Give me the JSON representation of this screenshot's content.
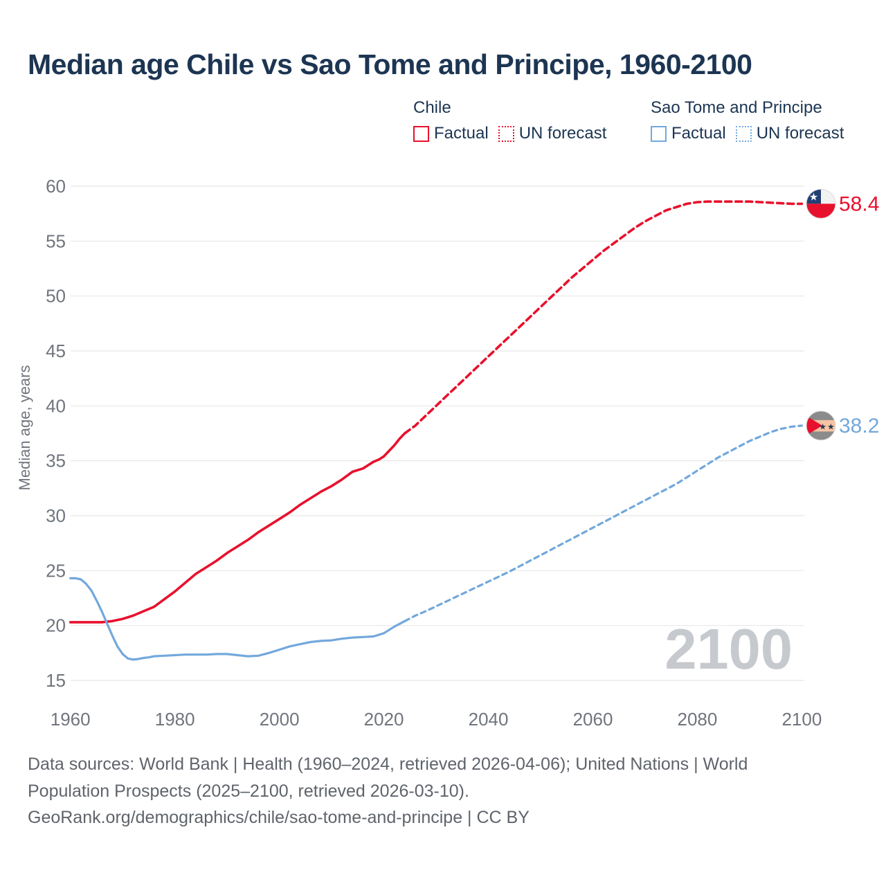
{
  "title": "Median age Chile vs Sao Tome and Principe, 1960-2100",
  "palette": {
    "red": "#e8112d",
    "blue": "#72a8dc",
    "title_navy": "#1c3552",
    "tick_gray": "#70747c",
    "grid_gray": "#e8e8e8",
    "footer_gray": "#5f646b",
    "watermark_gray": "#c6c9cd"
  },
  "legend": {
    "groups": [
      {
        "name": "Chile",
        "color": "#e8112d",
        "items": [
          {
            "label": "Factual",
            "style": "solid"
          },
          {
            "label": "UN forecast",
            "style": "dotted"
          }
        ]
      },
      {
        "name": "Sao Tome and Principe",
        "color": "#72a8dc",
        "items": [
          {
            "label": "Factual",
            "style": "solid"
          },
          {
            "label": "UN forecast",
            "style": "dotted"
          }
        ]
      }
    ]
  },
  "chart_data": {
    "type": "line",
    "title": "Median age Chile vs Sao Tome and Principe, 1960-2100",
    "xlabel": "",
    "ylabel": "Median age, years",
    "xlim": [
      1960,
      2100
    ],
    "ylim": [
      15,
      60
    ],
    "grid": true,
    "xticks": [
      1960,
      1980,
      2000,
      2020,
      2040,
      2060,
      2080,
      2100
    ],
    "yticks": [
      15,
      20,
      25,
      30,
      35,
      40,
      45,
      50,
      55,
      60
    ],
    "watermark": "2100",
    "series": [
      {
        "name": "Chile",
        "phase": "Factual",
        "style": "solid",
        "color": "#e8112d",
        "points": [
          [
            1960,
            20.3
          ],
          [
            1962,
            20.3
          ],
          [
            1964,
            20.3
          ],
          [
            1966,
            20.3
          ],
          [
            1968,
            20.4
          ],
          [
            1970,
            20.6
          ],
          [
            1972,
            20.9
          ],
          [
            1974,
            21.3
          ],
          [
            1976,
            21.7
          ],
          [
            1978,
            22.4
          ],
          [
            1980,
            23.1
          ],
          [
            1982,
            23.9
          ],
          [
            1984,
            24.7
          ],
          [
            1986,
            25.3
          ],
          [
            1988,
            25.9
          ],
          [
            1990,
            26.6
          ],
          [
            1992,
            27.2
          ],
          [
            1994,
            27.8
          ],
          [
            1996,
            28.5
          ],
          [
            1998,
            29.1
          ],
          [
            2000,
            29.7
          ],
          [
            2002,
            30.3
          ],
          [
            2004,
            31.0
          ],
          [
            2006,
            31.6
          ],
          [
            2008,
            32.2
          ],
          [
            2010,
            32.7
          ],
          [
            2012,
            33.3
          ],
          [
            2014,
            34.0
          ],
          [
            2016,
            34.3
          ],
          [
            2017,
            34.6
          ],
          [
            2018,
            34.9
          ],
          [
            2019,
            35.1
          ],
          [
            2020,
            35.4
          ],
          [
            2021,
            35.9
          ],
          [
            2022,
            36.4
          ],
          [
            2023,
            37.0
          ],
          [
            2024,
            37.5
          ]
        ]
      },
      {
        "name": "Chile",
        "phase": "UN forecast",
        "style": "dashed",
        "color": "#e8112d",
        "points": [
          [
            2024,
            37.5
          ],
          [
            2026,
            38.2
          ],
          [
            2028,
            39.1
          ],
          [
            2030,
            40.0
          ],
          [
            2032,
            40.9
          ],
          [
            2034,
            41.8
          ],
          [
            2036,
            42.7
          ],
          [
            2038,
            43.6
          ],
          [
            2040,
            44.5
          ],
          [
            2042,
            45.4
          ],
          [
            2044,
            46.3
          ],
          [
            2046,
            47.2
          ],
          [
            2048,
            48.1
          ],
          [
            2050,
            49.0
          ],
          [
            2052,
            49.9
          ],
          [
            2054,
            50.8
          ],
          [
            2056,
            51.7
          ],
          [
            2058,
            52.5
          ],
          [
            2060,
            53.3
          ],
          [
            2062,
            54.1
          ],
          [
            2064,
            54.8
          ],
          [
            2066,
            55.5
          ],
          [
            2068,
            56.2
          ],
          [
            2070,
            56.8
          ],
          [
            2072,
            57.3
          ],
          [
            2074,
            57.8
          ],
          [
            2076,
            58.1
          ],
          [
            2078,
            58.4
          ],
          [
            2080,
            58.55
          ],
          [
            2082,
            58.6
          ],
          [
            2084,
            58.6
          ],
          [
            2086,
            58.6
          ],
          [
            2088,
            58.6
          ],
          [
            2090,
            58.6
          ],
          [
            2092,
            58.55
          ],
          [
            2094,
            58.5
          ],
          [
            2096,
            58.45
          ],
          [
            2098,
            58.4
          ],
          [
            2100,
            58.4
          ]
        ]
      },
      {
        "name": "Sao Tome and Principe",
        "phase": "Factual",
        "style": "solid",
        "color": "#72a8dc",
        "points": [
          [
            1960,
            24.3
          ],
          [
            1961,
            24.3
          ],
          [
            1962,
            24.2
          ],
          [
            1963,
            23.8
          ],
          [
            1964,
            23.2
          ],
          [
            1965,
            22.3
          ],
          [
            1966,
            21.3
          ],
          [
            1967,
            20.2
          ],
          [
            1968,
            19.1
          ],
          [
            1969,
            18.1
          ],
          [
            1970,
            17.4
          ],
          [
            1971,
            17.0
          ],
          [
            1972,
            16.9
          ],
          [
            1973,
            16.95
          ],
          [
            1974,
            17.05
          ],
          [
            1975,
            17.1
          ],
          [
            1976,
            17.2
          ],
          [
            1978,
            17.25
          ],
          [
            1980,
            17.3
          ],
          [
            1982,
            17.35
          ],
          [
            1984,
            17.35
          ],
          [
            1986,
            17.35
          ],
          [
            1988,
            17.4
          ],
          [
            1990,
            17.4
          ],
          [
            1992,
            17.3
          ],
          [
            1994,
            17.2
          ],
          [
            1996,
            17.25
          ],
          [
            1998,
            17.5
          ],
          [
            2000,
            17.8
          ],
          [
            2002,
            18.1
          ],
          [
            2004,
            18.3
          ],
          [
            2006,
            18.5
          ],
          [
            2008,
            18.6
          ],
          [
            2010,
            18.65
          ],
          [
            2012,
            18.8
          ],
          [
            2014,
            18.9
          ],
          [
            2016,
            18.95
          ],
          [
            2018,
            19.0
          ],
          [
            2020,
            19.3
          ],
          [
            2022,
            19.9
          ],
          [
            2024,
            20.4
          ]
        ]
      },
      {
        "name": "Sao Tome and Principe",
        "phase": "UN forecast",
        "style": "dashed",
        "color": "#72a8dc",
        "points": [
          [
            2024,
            20.4
          ],
          [
            2026,
            20.9
          ],
          [
            2028,
            21.3
          ],
          [
            2030,
            21.75
          ],
          [
            2032,
            22.2
          ],
          [
            2034,
            22.65
          ],
          [
            2036,
            23.1
          ],
          [
            2038,
            23.55
          ],
          [
            2040,
            24.0
          ],
          [
            2042,
            24.45
          ],
          [
            2044,
            24.9
          ],
          [
            2046,
            25.4
          ],
          [
            2048,
            25.9
          ],
          [
            2050,
            26.4
          ],
          [
            2052,
            26.9
          ],
          [
            2054,
            27.4
          ],
          [
            2056,
            27.9
          ],
          [
            2058,
            28.4
          ],
          [
            2060,
            28.9
          ],
          [
            2062,
            29.4
          ],
          [
            2064,
            29.9
          ],
          [
            2066,
            30.4
          ],
          [
            2068,
            30.9
          ],
          [
            2070,
            31.4
          ],
          [
            2072,
            31.9
          ],
          [
            2074,
            32.4
          ],
          [
            2076,
            32.9
          ],
          [
            2078,
            33.5
          ],
          [
            2080,
            34.1
          ],
          [
            2082,
            34.7
          ],
          [
            2084,
            35.3
          ],
          [
            2086,
            35.8
          ],
          [
            2088,
            36.3
          ],
          [
            2090,
            36.8
          ],
          [
            2092,
            37.2
          ],
          [
            2094,
            37.6
          ],
          [
            2096,
            37.9
          ],
          [
            2098,
            38.1
          ],
          [
            2100,
            38.2
          ]
        ]
      }
    ],
    "end_labels": [
      {
        "country": "Chile",
        "label": "58.4",
        "year": 2100,
        "value": 58.4,
        "flag": "chile",
        "color": "#e8112d"
      },
      {
        "country": "Sao Tome and Principe",
        "label": "38.2",
        "year": 2100,
        "value": 38.2,
        "flag": "sao-tome-and-principe",
        "color": "#72a8dc"
      }
    ]
  },
  "footer": {
    "lines": [
      "Data sources: World Bank | Health (1960–2024, retrieved 2026-04-06); United Nations | World",
      "Population Prospects (2025–2100, retrieved 2026-03-10).",
      "GeoRank.org/demographics/chile/sao-tome-and-principe | CC BY"
    ]
  }
}
